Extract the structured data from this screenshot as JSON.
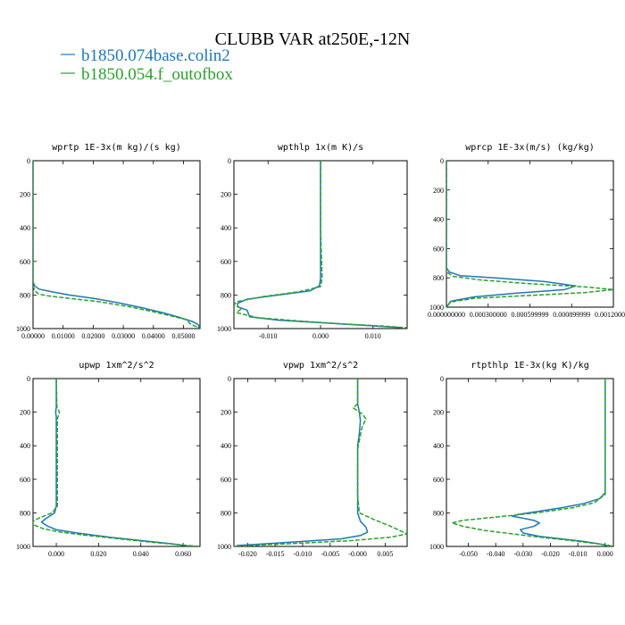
{
  "title": "CLUBB VAR at250E,-12N",
  "legend": [
    {
      "name": "b1850.074base.colin2",
      "color": "#1f77b4",
      "dash": "solid"
    },
    {
      "name": "b1850.054.f_outofbox",
      "color": "#2ca02c",
      "dash": "dashed"
    }
  ],
  "chart_data": [
    {
      "type": "line",
      "title": "wprtp  1E-3x(m kg)/(s kg)",
      "xlim": [
        0.0,
        0.0555
      ],
      "ylim": [
        1000,
        0
      ],
      "xticks": [
        0.0,
        0.01,
        0.02,
        0.03,
        0.04,
        0.05
      ],
      "xtick_labels": [
        "0.00000",
        "0.01000",
        "0.02000",
        "0.03000",
        "0.04000",
        "0.05000"
      ],
      "yticks": [
        0,
        200,
        400,
        600,
        800,
        1000
      ],
      "series": [
        {
          "color": "#1f77b4",
          "dash": "solid",
          "points": [
            [
              0.0,
              0
            ],
            [
              0.0,
              500
            ],
            [
              0.0,
              720
            ],
            [
              0.0005,
              745
            ],
            [
              0.002,
              765
            ],
            [
              0.006,
              780
            ],
            [
              0.012,
              800
            ],
            [
              0.02,
              820
            ],
            [
              0.028,
              845
            ],
            [
              0.036,
              875
            ],
            [
              0.043,
              905
            ],
            [
              0.049,
              935
            ],
            [
              0.053,
              958
            ],
            [
              0.0548,
              975
            ],
            [
              0.0553,
              990
            ],
            [
              0.0545,
              1000
            ]
          ]
        },
        {
          "color": "#2ca02c",
          "dash": "dashed",
          "points": [
            [
              0.0,
              0
            ],
            [
              0.0,
              500
            ],
            [
              0.0,
              740
            ],
            [
              0.0005,
              775
            ],
            [
              0.002,
              795
            ],
            [
              0.005,
              805
            ],
            [
              0.012,
              820
            ],
            [
              0.022,
              840
            ],
            [
              0.032,
              870
            ],
            [
              0.04,
              900
            ],
            [
              0.046,
              925
            ],
            [
              0.0505,
              945
            ],
            [
              0.0515,
              958
            ],
            [
              0.0525,
              975
            ],
            [
              0.0545,
              990
            ],
            [
              0.0553,
              1000
            ]
          ]
        }
      ]
    },
    {
      "type": "line",
      "title": "wpthlp  1x(m K)/s",
      "xlim": [
        -0.0165,
        0.0165
      ],
      "ylim": [
        1000,
        0
      ],
      "xticks": [
        -0.01,
        0.0,
        0.01
      ],
      "xtick_labels": [
        "-0.010",
        "0.000",
        "0.010"
      ],
      "yticks": [
        0,
        200,
        400,
        600,
        800,
        1000
      ],
      "series": [
        {
          "color": "#1f77b4",
          "dash": "solid",
          "points": [
            [
              0.0,
              0
            ],
            [
              0.0,
              400
            ],
            [
              0.0,
              700
            ],
            [
              -0.0002,
              745
            ],
            [
              -0.002,
              775
            ],
            [
              -0.008,
              800
            ],
            [
              -0.014,
              825
            ],
            [
              -0.0158,
              850
            ],
            [
              -0.0158,
              870
            ],
            [
              -0.014,
              890
            ],
            [
              -0.0135,
              930
            ],
            [
              -0.008,
              950
            ],
            [
              0.0,
              965
            ],
            [
              0.008,
              980
            ],
            [
              0.0155,
              995
            ]
          ]
        },
        {
          "color": "#2ca02c",
          "dash": "dashed",
          "points": [
            [
              0.0,
              0
            ],
            [
              0.0,
              400
            ],
            [
              0.0003,
              700
            ],
            [
              0.0,
              750
            ],
            [
              -0.004,
              780
            ],
            [
              -0.011,
              810
            ],
            [
              -0.016,
              840
            ],
            [
              -0.0165,
              860
            ],
            [
              -0.015,
              880
            ],
            [
              -0.016,
              905
            ],
            [
              -0.012,
              935
            ],
            [
              -0.004,
              955
            ],
            [
              0.004,
              972
            ],
            [
              0.012,
              985
            ],
            [
              0.0165,
              995
            ]
          ]
        }
      ]
    },
    {
      "type": "line",
      "title": "wprcp  1E-3x(m/s) (kg/kg)",
      "xlim": [
        0.0,
        0.0012
      ],
      "ylim": [
        1000,
        0
      ],
      "xticks": [
        0.0,
        0.0003,
        0.0006,
        0.0009,
        0.0012
      ],
      "xtick_labels": [
        "0.000000000",
        "0.000300000",
        "0.000599999",
        "0.000899999",
        "0.001200000"
      ],
      "yticks": [
        0,
        200,
        400,
        600,
        800,
        1000
      ],
      "series": [
        {
          "color": "#1f77b4",
          "dash": "solid",
          "points": [
            [
              0.0,
              0
            ],
            [
              0.0,
              600
            ],
            [
              0.0,
              730
            ],
            [
              2e-05,
              760
            ],
            [
              0.0001,
              785
            ],
            [
              0.00035,
              800
            ],
            [
              0.0007,
              825
            ],
            [
              0.00093,
              855
            ],
            [
              0.00085,
              880
            ],
            [
              0.0005,
              905
            ],
            [
              0.0002,
              930
            ],
            [
              3e-05,
              960
            ],
            [
              0.0,
              1000
            ]
          ]
        },
        {
          "color": "#2ca02c",
          "dash": "dashed",
          "points": [
            [
              0.0,
              0
            ],
            [
              0.0,
              600
            ],
            [
              0.0,
              760
            ],
            [
              5e-05,
              790
            ],
            [
              0.00025,
              815
            ],
            [
              0.0006,
              840
            ],
            [
              0.001,
              862
            ],
            [
              0.0012,
              880
            ],
            [
              0.001,
              900
            ],
            [
              0.0006,
              920
            ],
            [
              0.0002,
              940
            ],
            [
              3e-05,
              965
            ],
            [
              0.0,
              1000
            ]
          ]
        }
      ]
    },
    {
      "type": "line",
      "title": "upwp  1xm^2/s^2",
      "xlim": [
        -0.011,
        0.068
      ],
      "ylim": [
        1000,
        0
      ],
      "xticks": [
        0.0,
        0.02,
        0.04,
        0.06
      ],
      "xtick_labels": [
        "0.000",
        "0.020",
        "0.040",
        "0.060"
      ],
      "yticks": [
        0,
        200,
        400,
        600,
        800,
        1000
      ],
      "series": [
        {
          "color": "#1f77b4",
          "dash": "solid",
          "points": [
            [
              0.0,
              0
            ],
            [
              0.0,
              170
            ],
            [
              -0.0003,
              200
            ],
            [
              0.0,
              230
            ],
            [
              0.0,
              400
            ],
            [
              0.0,
              760
            ],
            [
              -0.0008,
              800
            ],
            [
              -0.005,
              835
            ],
            [
              -0.007,
              855
            ],
            [
              -0.004,
              880
            ],
            [
              0.0,
              900
            ],
            [
              0.01,
              920
            ],
            [
              0.025,
              945
            ],
            [
              0.04,
              965
            ],
            [
              0.055,
              985
            ],
            [
              0.064,
              1000
            ]
          ]
        },
        {
          "color": "#2ca02c",
          "dash": "dashed",
          "points": [
            [
              0.0,
              0
            ],
            [
              0.0003,
              170
            ],
            [
              0.0015,
              200
            ],
            [
              0.0005,
              240
            ],
            [
              0.0005,
              400
            ],
            [
              0.0005,
              760
            ],
            [
              -0.002,
              800
            ],
            [
              -0.008,
              830
            ],
            [
              -0.011,
              850
            ],
            [
              -0.011,
              870
            ],
            [
              -0.006,
              895
            ],
            [
              0.002,
              915
            ],
            [
              0.015,
              935
            ],
            [
              0.03,
              955
            ],
            [
              0.045,
              975
            ],
            [
              0.06,
              992
            ],
            [
              0.068,
              1000
            ]
          ]
        }
      ]
    },
    {
      "type": "line",
      "title": "vpwp  1xm^2/s^2",
      "xlim": [
        -0.0225,
        0.009
      ],
      "ylim": [
        1000,
        0
      ],
      "xticks": [
        -0.02,
        -0.015,
        -0.01,
        -0.005,
        0.0,
        0.005
      ],
      "xtick_labels": [
        "-0.020",
        "-0.015",
        "-0.010",
        "-0.005",
        "-0.000",
        "0.005"
      ],
      "yticks": [
        0,
        200,
        400,
        600,
        800,
        1000
      ],
      "series": [
        {
          "color": "#1f77b4",
          "dash": "solid",
          "points": [
            [
              0.0,
              0
            ],
            [
              0.0,
              150
            ],
            [
              0.0003,
              200
            ],
            [
              0.0005,
              250
            ],
            [
              0.0003,
              330
            ],
            [
              0.0,
              400
            ],
            [
              0.0,
              700
            ],
            [
              0.0,
              800
            ],
            [
              0.0005,
              850
            ],
            [
              0.0015,
              885
            ],
            [
              0.0018,
              915
            ],
            [
              0.0005,
              935
            ],
            [
              -0.003,
              955
            ],
            [
              -0.01,
              970
            ],
            [
              -0.017,
              985
            ],
            [
              -0.022,
              995
            ]
          ]
        },
        {
          "color": "#2ca02c",
          "dash": "dashed",
          "points": [
            [
              0.0,
              0
            ],
            [
              0.0,
              150
            ],
            [
              -0.0008,
              175
            ],
            [
              0.0008,
              210
            ],
            [
              0.0015,
              240
            ],
            [
              0.0008,
              290
            ],
            [
              0.0003,
              370
            ],
            [
              0.0,
              420
            ],
            [
              0.0,
              700
            ],
            [
              0.0003,
              800
            ],
            [
              0.003,
              840
            ],
            [
              0.006,
              880
            ],
            [
              0.009,
              925
            ],
            [
              0.006,
              945
            ],
            [
              -0.001,
              965
            ],
            [
              -0.01,
              980
            ],
            [
              -0.018,
              992
            ],
            [
              -0.0225,
              1000
            ]
          ]
        }
      ]
    },
    {
      "type": "line",
      "title": "rtpthlp  1E-3x(kg K)/kg",
      "xlim": [
        -0.058,
        0.003
      ],
      "ylim": [
        1000,
        0
      ],
      "xticks": [
        -0.05,
        -0.04,
        -0.03,
        -0.02,
        -0.01,
        0.0
      ],
      "xtick_labels": [
        "-0.050",
        "-0.040",
        "-0.030",
        "-0.020",
        "-0.010",
        "0.000"
      ],
      "yticks": [
        0,
        200,
        400,
        600,
        800,
        1000
      ],
      "series": [
        {
          "color": "#1f77b4",
          "dash": "solid",
          "points": [
            [
              0.0,
              0
            ],
            [
              0.0,
              400
            ],
            [
              0.0,
              680
            ],
            [
              -0.002,
              715
            ],
            [
              -0.008,
              745
            ],
            [
              -0.016,
              770
            ],
            [
              -0.024,
              790
            ],
            [
              -0.032,
              810
            ],
            [
              -0.034,
              820
            ],
            [
              -0.03,
              832
            ],
            [
              -0.026,
              845
            ],
            [
              -0.024,
              860
            ],
            [
              -0.026,
              880
            ],
            [
              -0.031,
              900
            ],
            [
              -0.03,
              920
            ],
            [
              -0.024,
              940
            ],
            [
              -0.016,
              955
            ],
            [
              -0.008,
              970
            ],
            [
              -0.002,
              985
            ],
            [
              0.002,
              1000
            ]
          ]
        },
        {
          "color": "#2ca02c",
          "dash": "dashed",
          "points": [
            [
              0.0,
              0
            ],
            [
              0.0,
              400
            ],
            [
              0.0,
              690
            ],
            [
              -0.004,
              740
            ],
            [
              -0.012,
              770
            ],
            [
              -0.025,
              800
            ],
            [
              -0.04,
              825
            ],
            [
              -0.052,
              845
            ],
            [
              -0.056,
              860
            ],
            [
              -0.052,
              880
            ],
            [
              -0.044,
              905
            ],
            [
              -0.034,
              925
            ],
            [
              -0.024,
              945
            ],
            [
              -0.014,
              962
            ],
            [
              -0.006,
              978
            ],
            [
              0.001,
              992
            ],
            [
              0.003,
              1000
            ]
          ]
        }
      ]
    }
  ]
}
